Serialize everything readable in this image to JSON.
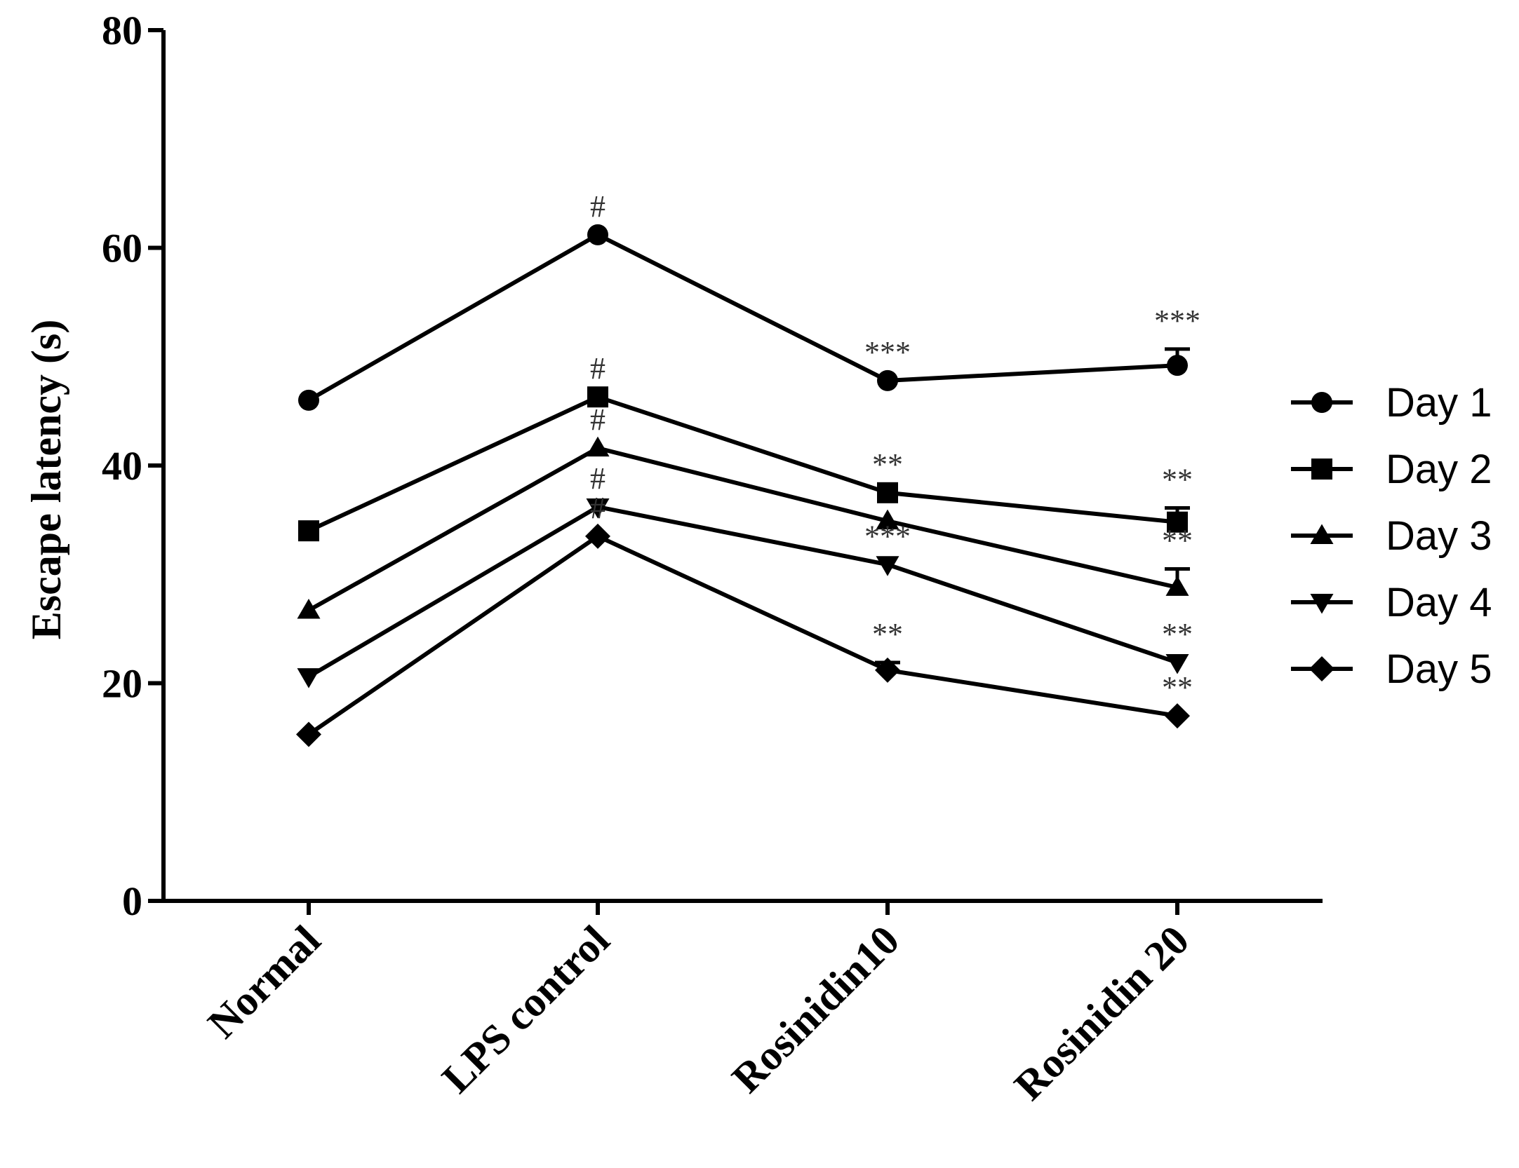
{
  "chart_data": {
    "type": "line",
    "title": "",
    "xlabel": "",
    "ylabel": "Escape latency (s)",
    "ylim": [
      0,
      80
    ],
    "yticks": [
      0,
      20,
      40,
      60,
      80
    ],
    "categories": [
      "Normal",
      "LPS control",
      "Rosinidin10",
      "Rosinidin 20"
    ],
    "grid": false,
    "legend_position": "right",
    "series": [
      {
        "name": "Day 1",
        "marker": "circle",
        "values": [
          46.0,
          61.2,
          47.8,
          49.2
        ],
        "error": [
          0,
          0,
          0,
          1.5
        ]
      },
      {
        "name": "Day 2",
        "marker": "square",
        "values": [
          34.0,
          46.3,
          37.5,
          34.8
        ],
        "error": [
          0,
          0,
          0,
          1.3
        ]
      },
      {
        "name": "Day 3",
        "marker": "triangle-up",
        "values": [
          26.7,
          41.6,
          34.9,
          28.8
        ],
        "error": [
          0,
          0,
          0,
          1.7
        ]
      },
      {
        "name": "Day 4",
        "marker": "triangle-down",
        "values": [
          20.6,
          36.2,
          30.9,
          21.9
        ],
        "error": [
          0,
          0,
          0,
          0
        ]
      },
      {
        "name": "Day 5",
        "marker": "diamond",
        "values": [
          15.3,
          33.5,
          21.2,
          17.0
        ],
        "error": [
          0,
          0,
          0.7,
          0
        ]
      }
    ],
    "annotations": [
      {
        "text": "#",
        "category": 1,
        "y": 61.2
      },
      {
        "text": "#",
        "category": 1,
        "y": 46.3
      },
      {
        "text": "#",
        "category": 1,
        "y": 41.6
      },
      {
        "text": "#",
        "category": 1,
        "y": 36.2
      },
      {
        "text": "#",
        "category": 1,
        "y": 33.5
      },
      {
        "text": "***",
        "category": 2,
        "y": 47.8
      },
      {
        "text": "***",
        "category": 3,
        "y": 50.7
      },
      {
        "text": "**",
        "category": 2,
        "y": 37.5
      },
      {
        "text": "**",
        "category": 3,
        "y": 36.1
      },
      {
        "text": "***",
        "category": 2,
        "y": 30.9
      },
      {
        "text": "**",
        "category": 3,
        "y": 30.5
      },
      {
        "text": "**",
        "category": 2,
        "y": 21.9
      },
      {
        "text": "**",
        "category": 3,
        "y": 21.9
      },
      {
        "text": "**",
        "category": 3,
        "y": 17.0
      }
    ]
  }
}
